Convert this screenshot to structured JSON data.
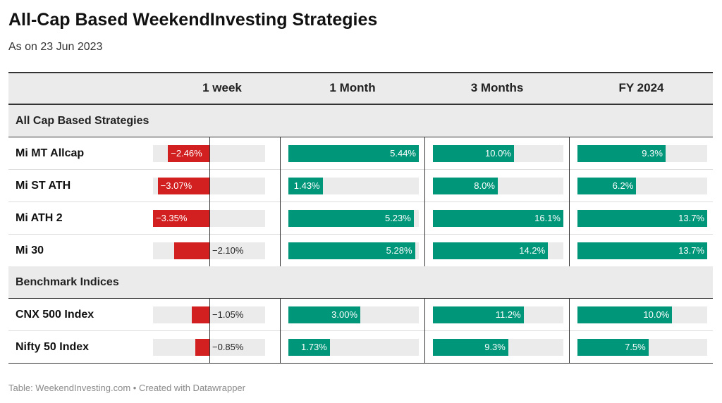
{
  "title": "All-Cap Based WeekendInvesting Strategies",
  "subtitle": "As on 23 Jun 2023",
  "footer": "Table: WeekendInvesting.com • Created with Datawrapper",
  "colors": {
    "positive": "#00967a",
    "negative": "#d21f1f",
    "track": "#ebebeb",
    "header_bg": "#ebebeb"
  },
  "chart_data": {
    "type": "table",
    "columns": [
      "1 week",
      "1 Month",
      "3 Months",
      "FY 2024"
    ],
    "column_keys": [
      "week",
      "month",
      "months3",
      "fy2024"
    ],
    "column_ranges": {
      "week": [
        -3.35,
        1.72
      ],
      "month": [
        0,
        5.44
      ],
      "months3": [
        0,
        16.1
      ],
      "fy2024": [
        0,
        13.7
      ]
    },
    "groups": [
      {
        "label": "All Cap Based Strategies",
        "rows": [
          {
            "name": "Mi MT Allcap",
            "week": {
              "value": -2.46,
              "label": "−2.46%"
            },
            "month": {
              "value": 5.44,
              "label": "5.44%"
            },
            "months3": {
              "value": 10.0,
              "label": "10.0%"
            },
            "fy2024": {
              "value": 9.3,
              "label": "9.3%"
            }
          },
          {
            "name": "Mi ST ATH",
            "week": {
              "value": -3.07,
              "label": "−3.07%"
            },
            "month": {
              "value": 1.43,
              "label": "1.43%"
            },
            "months3": {
              "value": 8.0,
              "label": "8.0%"
            },
            "fy2024": {
              "value": 6.2,
              "label": "6.2%"
            }
          },
          {
            "name": "Mi ATH 2",
            "week": {
              "value": -3.35,
              "label": "−3.35%"
            },
            "month": {
              "value": 5.23,
              "label": "5.23%"
            },
            "months3": {
              "value": 16.1,
              "label": "16.1%"
            },
            "fy2024": {
              "value": 13.7,
              "label": "13.7%"
            }
          },
          {
            "name": "Mi 30",
            "week": {
              "value": -2.1,
              "label": "−2.10%"
            },
            "month": {
              "value": 5.28,
              "label": "5.28%"
            },
            "months3": {
              "value": 14.2,
              "label": "14.2%"
            },
            "fy2024": {
              "value": 13.7,
              "label": "13.7%"
            }
          }
        ]
      },
      {
        "label": "Benchmark Indices",
        "rows": [
          {
            "name": "CNX 500 Index",
            "week": {
              "value": -1.05,
              "label": "−1.05%"
            },
            "month": {
              "value": 3.0,
              "label": "3.00%"
            },
            "months3": {
              "value": 11.2,
              "label": "11.2%"
            },
            "fy2024": {
              "value": 10.0,
              "label": "10.0%"
            }
          },
          {
            "name": "Nifty 50 Index",
            "week": {
              "value": -0.85,
              "label": "−0.85%"
            },
            "month": {
              "value": 1.73,
              "label": "1.73%"
            },
            "months3": {
              "value": 9.3,
              "label": "9.3%"
            },
            "fy2024": {
              "value": 7.5,
              "label": "7.5%"
            }
          }
        ]
      }
    ]
  }
}
